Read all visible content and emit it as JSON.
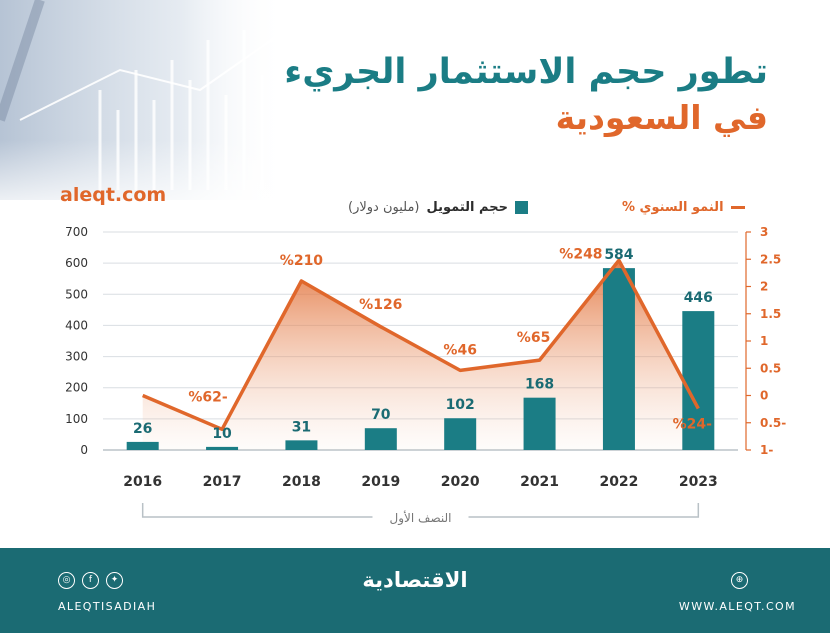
{
  "header": {
    "title": "تطور حجم الاستثمار الجريء",
    "subtitle": "في السعودية",
    "site": "aleqt.com"
  },
  "footer": {
    "logo": "الاقتصادية",
    "handle": "ALEQTISADIAH",
    "website": "WWW.ALEQT.COM",
    "social_icons": [
      "instagram-icon",
      "facebook-icon",
      "twitter-icon"
    ],
    "site_icon": "globe-icon"
  },
  "chart_data": {
    "type": "bar",
    "title": "تطور حجم الاستثمار الجريء في السعودية",
    "categories": [
      "2016",
      "2017",
      "2018",
      "2019",
      "2020",
      "2021",
      "2022",
      "2023"
    ],
    "period_bracket": {
      "from": "2016",
      "to": "2023",
      "label": "النصف الأول"
    },
    "series": [
      {
        "name": "حجم التمويل",
        "unit": "(مليون دولار)",
        "type": "bar",
        "axis": "left",
        "color": "#1b7d85",
        "values": [
          26,
          10,
          31,
          70,
          102,
          168,
          584,
          446
        ],
        "labels": [
          "26",
          "10",
          "31",
          "70",
          "102",
          "168",
          "584",
          "446"
        ]
      },
      {
        "name": "النمو السنوي %",
        "type": "line",
        "axis": "right",
        "color": "#e0672b",
        "values": [
          null,
          -0.62,
          2.1,
          1.26,
          0.46,
          0.65,
          2.48,
          -0.24
        ],
        "labels": [
          "",
          "%62-",
          "%210",
          "%126",
          "%46",
          "%65",
          "%248",
          "%24-"
        ]
      }
    ],
    "y_left": {
      "min": 0,
      "max": 700,
      "ticks": [
        "0",
        "100",
        "200",
        "300",
        "400",
        "500",
        "600",
        "700"
      ]
    },
    "y_right": {
      "min": -1,
      "max": 3,
      "ticks": [
        "-1",
        "-0.5",
        "0",
        "0.5",
        "1",
        "1.5",
        "2",
        "2.5",
        "3"
      ],
      "tick_labels": [
        "1-",
        "0.5-",
        "0",
        "0.5",
        "1",
        "1.5",
        "2",
        "2.5",
        "3"
      ]
    },
    "line_start_value": 0,
    "grid": true,
    "legend": "top"
  }
}
